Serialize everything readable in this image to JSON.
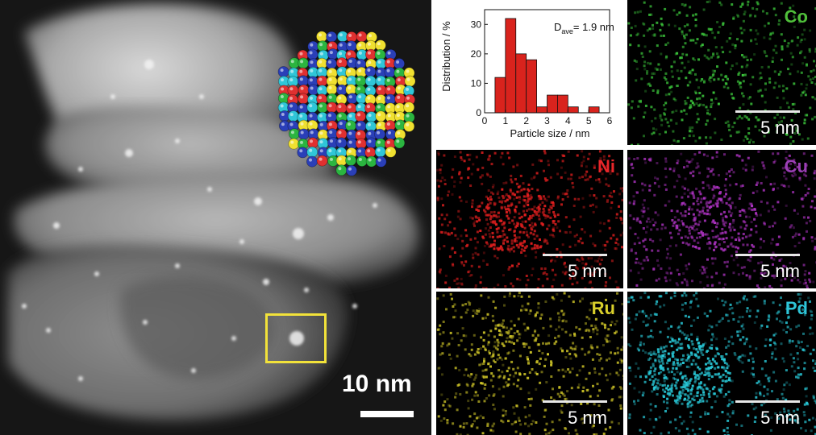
{
  "stem_image": {
    "scale_bar_label": "10 nm",
    "roi_color": "#f2e23a"
  },
  "histogram": {
    "annotation_D": "D",
    "annotation_sub": "ave",
    "annotation_value": "= 1.9 nm",
    "ylabel": "Distribution / %",
    "xlabel": "Particle size / nm",
    "x_ticks": [
      "0",
      "1",
      "2",
      "3",
      "4",
      "5",
      "6"
    ],
    "y_ticks": [
      "0",
      "10",
      "20",
      "30"
    ]
  },
  "chart_data": {
    "type": "bar",
    "xlabel": "Particle size / nm",
    "ylabel": "Distribution / %",
    "xlim": [
      0,
      6
    ],
    "ylim": [
      0,
      35
    ],
    "bar_width": 0.5,
    "bins_start": [
      0.5,
      1.0,
      1.5,
      2.0,
      2.5,
      3.0,
      3.5,
      4.0,
      4.5,
      5.0
    ],
    "values": [
      12,
      32,
      20,
      18,
      2,
      6,
      6,
      2,
      0,
      2
    ],
    "bar_color": "#d9231d"
  },
  "maps": [
    {
      "element": "Co",
      "color": "#4fbf3a",
      "scale_label": "5 nm",
      "rgb": [
        60,
        200,
        60
      ]
    },
    {
      "element": "Ni",
      "color": "#e8262a",
      "scale_label": "5 nm",
      "rgb": [
        220,
        30,
        30
      ]
    },
    {
      "element": "Cu",
      "color": "#9b3fb5",
      "scale_label": "5 nm",
      "rgb": [
        170,
        50,
        190
      ]
    },
    {
      "element": "Ru",
      "color": "#d9cf2b",
      "scale_label": "5 nm",
      "rgb": [
        210,
        200,
        40
      ]
    },
    {
      "element": "Pd",
      "color": "#2ec5d8",
      "scale_label": "5 nm",
      "rgb": [
        40,
        200,
        215
      ]
    }
  ]
}
